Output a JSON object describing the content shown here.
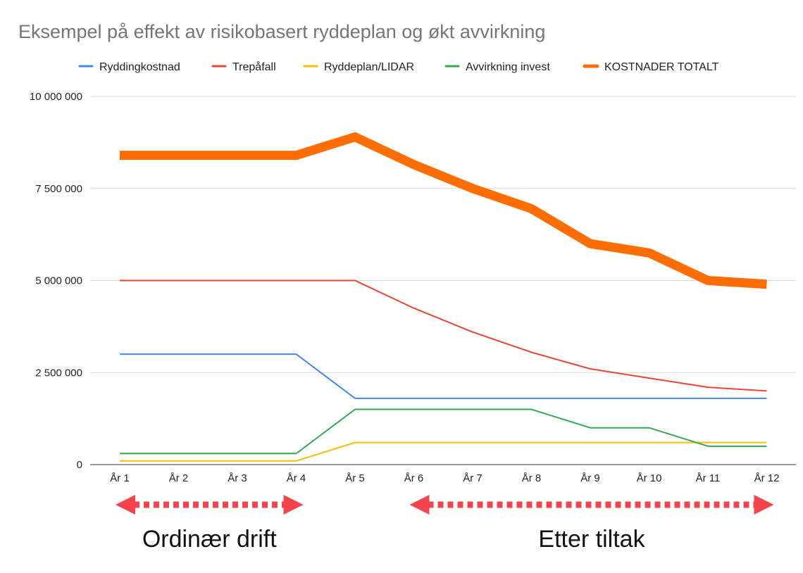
{
  "chart_data": {
    "type": "line",
    "title": "Eksempel på effekt av risikobasert ryddeplan og økt avvirkning",
    "categories": [
      "År 1",
      "År 2",
      "År 3",
      "År 4",
      "År 5",
      "År 6",
      "År 7",
      "År 8",
      "År 9",
      "År 10",
      "År 11",
      "År 12"
    ],
    "ylim": [
      0,
      10000000
    ],
    "yticks": [
      0,
      2500000,
      5000000,
      7500000,
      10000000
    ],
    "ytick_labels": [
      "0",
      "2 500 000",
      "5 000 000",
      "7 500 000",
      "10 000 000"
    ],
    "grid": true,
    "legend_position": "top",
    "series": [
      {
        "name": "Ryddingkostnad",
        "color": "#4285f4",
        "values": [
          3000000,
          3000000,
          3000000,
          3000000,
          1800000,
          1800000,
          1800000,
          1800000,
          1800000,
          1800000,
          1800000,
          1800000
        ]
      },
      {
        "name": "Trepåfall",
        "color": "#ea4335",
        "values": [
          5000000,
          5000000,
          5000000,
          5000000,
          5000000,
          4250000,
          3600000,
          3050000,
          2600000,
          2350000,
          2100000,
          2000000
        ]
      },
      {
        "name": "Ryddeplan/LIDAR",
        "color": "#fbbc04",
        "values": [
          100000,
          100000,
          100000,
          100000,
          600000,
          600000,
          600000,
          600000,
          600000,
          600000,
          600000,
          600000
        ]
      },
      {
        "name": "Avvirkning invest",
        "color": "#34a853",
        "values": [
          300000,
          300000,
          300000,
          300000,
          1500000,
          1500000,
          1500000,
          1500000,
          1000000,
          1000000,
          500000,
          500000
        ]
      },
      {
        "name": "KOSTNADER TOTALT",
        "color": "#ff6d01",
        "thick": true,
        "values": [
          8400000,
          8400000,
          8400000,
          8400000,
          8900000,
          8150000,
          7500000,
          6950000,
          6000000,
          5750000,
          5000000,
          4900000
        ]
      }
    ],
    "annotations": [
      {
        "label": "Ordinær drift",
        "from": "År 1",
        "to": "År 4",
        "color": "#f4434a"
      },
      {
        "label": "Etter tiltak",
        "from": "År 6",
        "to": "År 12",
        "color": "#f4434a"
      }
    ]
  }
}
